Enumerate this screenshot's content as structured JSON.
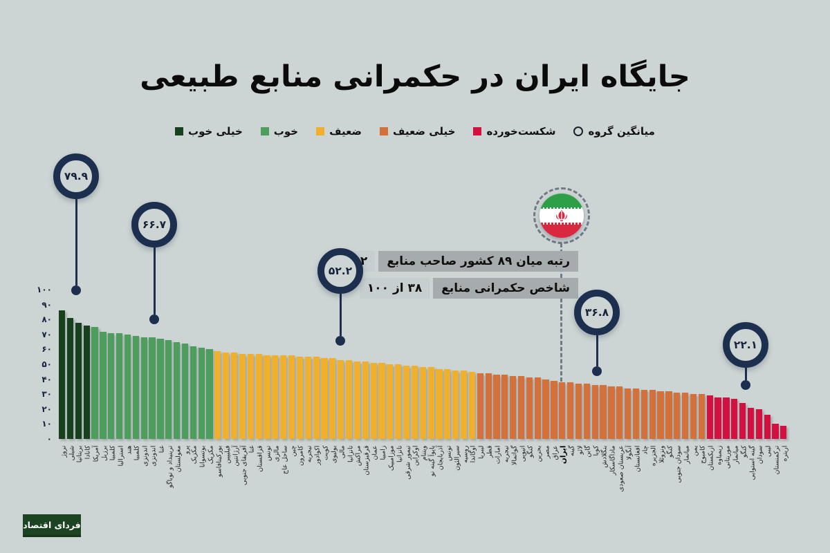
{
  "title": "جایگاه ایران در حکمرانی منابع طبیعی",
  "colors": {
    "background": "#cdd5d4",
    "navy": "#1c2f4f",
    "label_box": "#a6acae",
    "value_box": "#c7ced0",
    "flag_green": "#2d9f47",
    "flag_red": "#d8293f",
    "bands": {
      "very_good": "#17401d",
      "good": "#4d9d5c",
      "weak": "#f0b02b",
      "very_weak": "#d4703a",
      "failing": "#d31140"
    }
  },
  "legend": {
    "items": [
      {
        "label": "میانگین گروه",
        "marker": "circle-outline",
        "color": "none"
      },
      {
        "label": "شکست‌خورده",
        "marker": "square",
        "color": "#d31140"
      },
      {
        "label": "خیلی ضعیف",
        "marker": "square",
        "color": "#d4703a"
      },
      {
        "label": "ضعیف",
        "marker": "square",
        "color": "#f0b02b"
      },
      {
        "label": "خوب",
        "marker": "square",
        "color": "#4d9d5c"
      },
      {
        "label": "خیلی خوب",
        "marker": "square",
        "color": "#17401d"
      }
    ]
  },
  "info_box": {
    "rows": [
      {
        "label": "رتبه میان ۸۹ کشور صاحب منابع",
        "value": "۶۲"
      },
      {
        "label": "شاخص حکمرانی منابع",
        "value": "۳۸ از ۱۰۰"
      }
    ]
  },
  "chart_data": {
    "type": "bar",
    "ylim": [
      0,
      100
    ],
    "grid": false,
    "y_ticks": [
      {
        "v": 100,
        "label": "۱۰۰"
      },
      {
        "v": 90,
        "label": "۹۰"
      },
      {
        "v": 80,
        "label": "۸۰"
      },
      {
        "v": 70,
        "label": "۷۰"
      },
      {
        "v": 60,
        "label": "۶۰"
      },
      {
        "v": 50,
        "label": "۵۰"
      },
      {
        "v": 40,
        "label": "۴۰"
      },
      {
        "v": 30,
        "label": "۳۰"
      },
      {
        "v": 20,
        "label": "۲۰"
      },
      {
        "v": 10,
        "label": "۱۰"
      },
      {
        "v": 0,
        "label": "۰"
      }
    ],
    "categories": [
      "نروژ",
      "شیلی",
      "بریتانیا",
      "کانادا",
      "آمریکا",
      "برزیل",
      "کلمبیا",
      "استرالیا",
      "هند",
      "کلمبیا",
      "اندونزی",
      "اندونزی",
      "غنا",
      "ترینیداد و توباگو",
      "مغولستان",
      "پرو",
      "مکزیک",
      "بوتسوانا",
      "مکزیک",
      "بورکینافاسو",
      "فیلیپین",
      "آرژانتین",
      "آفریقای جنوبی",
      "غنا",
      "قزاقستان",
      "تونس",
      "مالزی",
      "ساحل عاج",
      "چین",
      "کامرون",
      "نیجریه",
      "اکوادور",
      "کویت",
      "بولیوی",
      "مالی",
      "تانزانیا",
      "مراکش",
      "قرقیزستان",
      "عمان",
      "زامبیا",
      "موزامبیک",
      "تانزانیا",
      "تیمور شرقی",
      "اوکراین",
      "ویتنام",
      "پاپوآ گینه نو",
      "آذربایجان",
      "تونس",
      "سیرالئون",
      "روسیه",
      "اوگاندا",
      "لیبریا",
      "قطر",
      "امارات",
      "نیجریه",
      "گواتمالا",
      "اتیوپی",
      "کنگو",
      "بحرین",
      "مصر",
      "عراق",
      "ایران",
      "گینه",
      "لائو",
      "گابن",
      "کوبا",
      "بنگلادش",
      "ماداگاسکار",
      "عربستان صعودی",
      "آنگولا",
      "افغانستان",
      "چاد",
      "الجزیره",
      "ونزوئلا",
      "کنگو",
      "سودان جنوبی",
      "میانمار",
      "یمن",
      "کامبوج",
      "ازبکستان",
      "زیمباوه",
      "موریتانی",
      "میانمار",
      "کنگو",
      "گینه استوایی",
      "سودان",
      "لیبی",
      "ترکمنستان",
      "اریتره"
    ],
    "values": [
      86,
      81,
      78,
      76,
      75,
      72,
      71,
      71,
      70,
      69,
      68,
      68,
      67,
      66,
      65,
      64,
      62,
      61,
      60,
      59,
      58,
      58,
      57,
      57,
      57,
      56,
      56,
      56,
      56,
      55,
      55,
      55,
      54,
      54,
      53,
      53,
      52,
      52,
      51,
      51,
      50,
      50,
      49,
      49,
      48,
      48,
      47,
      47,
      46,
      46,
      45,
      44,
      44,
      43,
      43,
      42,
      42,
      41,
      41,
      40,
      39,
      38,
      38,
      37,
      37,
      36,
      36,
      35,
      35,
      34,
      34,
      33,
      33,
      32,
      32,
      31,
      31,
      30,
      30,
      29,
      28,
      28,
      27,
      24,
      21,
      20,
      16,
      10,
      9
    ],
    "band_ranges": [
      {
        "band": "very_good",
        "from": 0,
        "to": 3
      },
      {
        "band": "good",
        "from": 4,
        "to": 18
      },
      {
        "band": "weak",
        "from": 19,
        "to": 50
      },
      {
        "band": "very_weak",
        "from": 51,
        "to": 78
      },
      {
        "band": "failing",
        "from": 79,
        "to": 88
      }
    ],
    "highlight_category": "ایران",
    "highlight_index": 61,
    "group_means": [
      {
        "band": "very_good",
        "label": "۷۹.۹"
      },
      {
        "band": "good",
        "label": "۶۶.۷"
      },
      {
        "band": "weak",
        "label": "۵۲.۲"
      },
      {
        "band": "very_weak",
        "label": "۳۶.۸"
      },
      {
        "band": "failing",
        "label": "۲۲.۱"
      }
    ]
  },
  "logo": {
    "text": "فردای اقتصاد"
  }
}
